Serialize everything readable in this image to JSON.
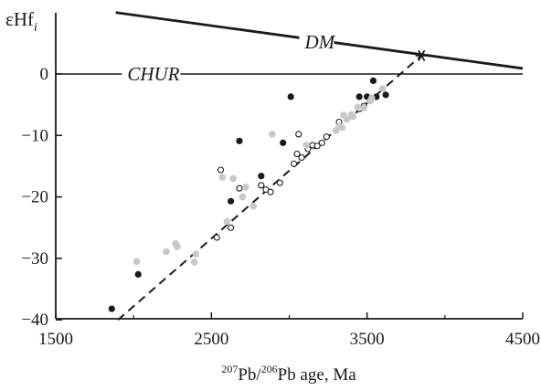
{
  "chart_data": {
    "type": "scatter",
    "title": "",
    "ylabel": "εHf",
    "ylabel_subscript": "i",
    "xlabel": {
      "sup1": "207",
      "mid": "Pb/",
      "sup2": "206",
      "end": "Pb age, Ma"
    },
    "xlim": [
      1500,
      4500
    ],
    "ylim": [
      -40,
      10
    ],
    "x_ticks": [
      1500,
      2500,
      3500,
      4500
    ],
    "x_minor_ticks": [
      2000,
      3000,
      4000
    ],
    "y_ticks": [
      0,
      -10,
      -20,
      -30,
      -40
    ],
    "y_tick_labels": [
      "0",
      "−10",
      "−20",
      "−30",
      "−40"
    ],
    "grid": false,
    "legend": "none",
    "colors": {
      "filled": "#1a1a1a",
      "open_stroke": "#1a1a1a",
      "gray": "#c8c8c8",
      "axis": "#1a1a1a"
    },
    "reference_lines": [
      {
        "name": "DM",
        "label": "DM",
        "x": [
          1885,
          4500
        ],
        "y": [
          10,
          0.9
        ],
        "style": "solid-thick",
        "label_at": [
          3100,
          5.2
        ]
      },
      {
        "name": "CHUR",
        "label": "CHUR",
        "x": [
          1500,
          4500
        ],
        "y": [
          0,
          0
        ],
        "style": "solid",
        "label_at": [
          1960,
          0
        ]
      },
      {
        "name": "trend",
        "label": "",
        "x": [
          1900,
          3850
        ],
        "y": [
          -40,
          3
        ],
        "style": "dashed"
      }
    ],
    "star_marker": {
      "x": 3850,
      "y": 3
    },
    "series": [
      {
        "marker": "filled",
        "points": [
          [
            1860,
            -38.2
          ],
          [
            2030,
            -32.6
          ],
          [
            2625,
            -20.7
          ],
          [
            2680,
            -10.9
          ],
          [
            2820,
            -16.6
          ],
          [
            2960,
            -11.2
          ],
          [
            3010,
            -3.7
          ],
          [
            3500,
            -3.7
          ],
          [
            3540,
            -1.1
          ],
          [
            3560,
            -3.7
          ],
          [
            3620,
            -3.4
          ],
          [
            3450,
            -3.7
          ]
        ]
      },
      {
        "marker": "open",
        "points": [
          [
            2535,
            -26.6
          ],
          [
            2560,
            -15.6
          ],
          [
            2625,
            -25.0
          ],
          [
            2680,
            -18.6
          ],
          [
            2820,
            -18.1
          ],
          [
            2850,
            -18.8
          ],
          [
            2880,
            -19.2
          ],
          [
            2940,
            -17.7
          ],
          [
            3030,
            -14.6
          ],
          [
            3050,
            -13.0
          ],
          [
            3060,
            -9.8
          ],
          [
            3080,
            -13.6
          ],
          [
            3120,
            -12.2
          ],
          [
            3150,
            -11.6
          ],
          [
            3180,
            -11.7
          ],
          [
            3210,
            -11.2
          ],
          [
            3240,
            -10.2
          ],
          [
            3320,
            -7.8
          ],
          [
            3450,
            -5.7
          ],
          [
            3480,
            -5.2
          ]
        ]
      },
      {
        "marker": "gray",
        "points": [
          [
            2020,
            -30.5
          ],
          [
            2210,
            -28.9
          ],
          [
            2270,
            -27.6
          ],
          [
            2280,
            -28.1
          ],
          [
            2390,
            -30.6
          ],
          [
            2400,
            -29.3
          ],
          [
            2570,
            -16.8
          ],
          [
            2600,
            -24.0
          ],
          [
            2640,
            -17.0
          ],
          [
            2700,
            -20.0
          ],
          [
            2720,
            -18.4
          ],
          [
            2770,
            -21.5
          ],
          [
            2890,
            -9.8
          ],
          [
            3110,
            -11.6
          ],
          [
            3300,
            -9.2
          ],
          [
            3320,
            -8.5
          ],
          [
            3340,
            -8.7
          ],
          [
            3350,
            -6.7
          ],
          [
            3370,
            -7.4
          ],
          [
            3400,
            -6.6
          ],
          [
            3410,
            -6.9
          ],
          [
            3440,
            -5.4
          ],
          [
            3480,
            -5.5
          ],
          [
            3520,
            -4.4
          ],
          [
            3530,
            -3.9
          ],
          [
            3600,
            -2.4
          ]
        ]
      }
    ]
  }
}
